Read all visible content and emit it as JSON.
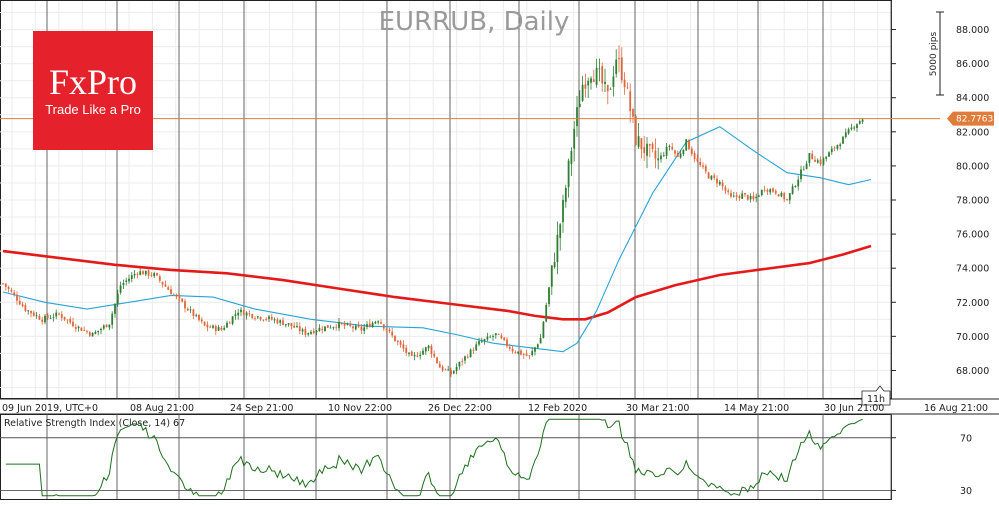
{
  "chart_data": [
    {
      "type": "candlestick",
      "title": "EURRUB, Daily",
      "ylim": [
        66.5,
        89.5
      ],
      "y_ticks": [
        "68.000",
        "70.000",
        "72.000",
        "74.000",
        "76.000",
        "78.000",
        "80.000",
        "82.000",
        "84.000",
        "86.000",
        "88.000"
      ],
      "x_ticks": [
        "09 Jun 2019, UTC+0",
        "08 Aug 21:00",
        "24 Sep 21:00",
        "10 Nov 22:00",
        "26 Dec 22:00",
        "12 Feb 2020",
        "30 Mar 21:00",
        "14 May 21:00",
        "30 Jun 21:00",
        "16 Aug 21:00"
      ],
      "current_price": 82.7763,
      "current_price_label": "82.7763",
      "scale_label": "5000 pips",
      "countdown_label": "11h",
      "colors": {
        "bull": "#2e7d32",
        "bear": "#e0663a",
        "ma_long": "#e41a1a",
        "ma_short": "#29a3d6",
        "price_line": "#e07b39"
      },
      "moving_average_long": [
        [
          0,
          75.0
        ],
        [
          20,
          74.6
        ],
        [
          40,
          74.2
        ],
        [
          60,
          73.9
        ],
        [
          80,
          73.7
        ],
        [
          100,
          73.3
        ],
        [
          120,
          72.8
        ],
        [
          140,
          72.3
        ],
        [
          160,
          71.9
        ],
        [
          180,
          71.5
        ],
        [
          190,
          71.2
        ],
        [
          200,
          71.0
        ],
        [
          208,
          71.0
        ],
        [
          216,
          71.4
        ],
        [
          226,
          72.3
        ],
        [
          240,
          73.0
        ],
        [
          256,
          73.6
        ],
        [
          272,
          73.95
        ],
        [
          288,
          74.3
        ],
        [
          300,
          74.8
        ],
        [
          310,
          75.3
        ]
      ],
      "moving_average_short": [
        [
          0,
          72.6
        ],
        [
          15,
          72.0
        ],
        [
          30,
          71.6
        ],
        [
          45,
          72.0
        ],
        [
          60,
          72.4
        ],
        [
          75,
          72.3
        ],
        [
          90,
          71.6
        ],
        [
          110,
          71.0
        ],
        [
          130,
          70.6
        ],
        [
          150,
          70.5
        ],
        [
          162,
          70.1
        ],
        [
          175,
          69.6
        ],
        [
          190,
          69.3
        ],
        [
          200,
          69.1
        ],
        [
          205,
          69.6
        ],
        [
          212,
          71.5
        ],
        [
          220,
          74.5
        ],
        [
          232,
          78.4
        ],
        [
          244,
          81.4
        ],
        [
          256,
          82.3
        ],
        [
          268,
          80.9
        ],
        [
          280,
          79.6
        ],
        [
          292,
          79.3
        ],
        [
          302,
          78.9
        ],
        [
          310,
          79.2
        ]
      ]
    },
    {
      "type": "line",
      "title": "Relative Strength Index (Close, 14) 67",
      "ylim": [
        25,
        85
      ],
      "y_ticks": [
        "70",
        "30"
      ],
      "levels": [
        70,
        30
      ],
      "color": "#1f6e1f"
    }
  ],
  "brand": {
    "logo_text": "FxPro",
    "tagline": "Trade Like a Pro",
    "color": "#e5222b"
  }
}
